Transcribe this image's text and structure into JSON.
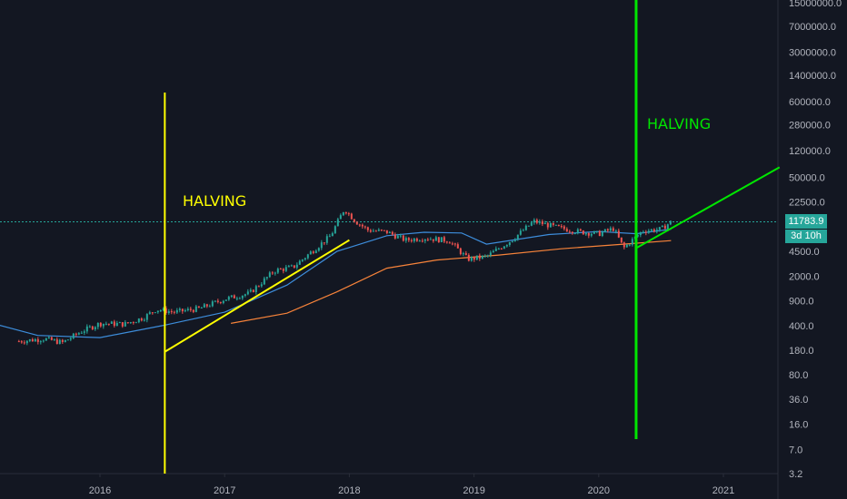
{
  "chart_data": {
    "type": "candlestick",
    "y_scale": "log",
    "y_ticks": [
      "15000000.0",
      "7000000.0",
      "3000000.0",
      "1400000.0",
      "600000.0",
      "280000.0",
      "120000.0",
      "50000.0",
      "22500.0",
      "4500.0",
      "2000.0",
      "900.0",
      "400.0",
      "180.0",
      "80.0",
      "36.0",
      "16.0",
      "7.0",
      "3.2"
    ],
    "x_ticks": [
      "2016",
      "2017",
      "2018",
      "2019",
      "2020",
      "2021"
    ],
    "last_price": "11783.9",
    "countdown": "3d 10h",
    "annotations": [
      {
        "text": "HALVING",
        "color": "#ffff00"
      },
      {
        "text": "HALVING",
        "color": "#00e600"
      }
    ],
    "price_series": [
      {
        "t": 2015.35,
        "v": 240
      },
      {
        "t": 2015.55,
        "v": 260
      },
      {
        "t": 2015.7,
        "v": 230
      },
      {
        "t": 2015.85,
        "v": 330
      },
      {
        "t": 2016.0,
        "v": 430
      },
      {
        "t": 2016.2,
        "v": 420
      },
      {
        "t": 2016.35,
        "v": 520
      },
      {
        "t": 2016.45,
        "v": 680
      },
      {
        "t": 2016.6,
        "v": 620
      },
      {
        "t": 2016.8,
        "v": 700
      },
      {
        "t": 2017.0,
        "v": 950
      },
      {
        "t": 2017.2,
        "v": 1150
      },
      {
        "t": 2017.4,
        "v": 2400
      },
      {
        "t": 2017.55,
        "v": 2700
      },
      {
        "t": 2017.7,
        "v": 4500
      },
      {
        "t": 2017.85,
        "v": 7500
      },
      {
        "t": 2017.96,
        "v": 18000
      },
      {
        "t": 2018.05,
        "v": 12000
      },
      {
        "t": 2018.15,
        "v": 9000
      },
      {
        "t": 2018.3,
        "v": 8500
      },
      {
        "t": 2018.45,
        "v": 6500
      },
      {
        "t": 2018.6,
        "v": 7000
      },
      {
        "t": 2018.8,
        "v": 6400
      },
      {
        "t": 2018.95,
        "v": 3500
      },
      {
        "t": 2019.1,
        "v": 3800
      },
      {
        "t": 2019.3,
        "v": 6500
      },
      {
        "t": 2019.48,
        "v": 12000
      },
      {
        "t": 2019.65,
        "v": 10000
      },
      {
        "t": 2019.85,
        "v": 8500
      },
      {
        "t": 2020.0,
        "v": 8000
      },
      {
        "t": 2020.12,
        "v": 9500
      },
      {
        "t": 2020.2,
        "v": 5000
      },
      {
        "t": 2020.35,
        "v": 8800
      },
      {
        "t": 2020.5,
        "v": 9300
      },
      {
        "t": 2020.58,
        "v": 11800
      }
    ],
    "ma_short": [
      {
        "t": 2015.0,
        "v": 500
      },
      {
        "t": 2015.5,
        "v": 290
      },
      {
        "t": 2016.0,
        "v": 270
      },
      {
        "t": 2016.5,
        "v": 400
      },
      {
        "t": 2017.0,
        "v": 620
      },
      {
        "t": 2017.5,
        "v": 1500
      },
      {
        "t": 2017.9,
        "v": 4500
      },
      {
        "t": 2018.3,
        "v": 7500
      },
      {
        "t": 2018.6,
        "v": 8400
      },
      {
        "t": 2018.9,
        "v": 8200
      },
      {
        "t": 2019.1,
        "v": 5700
      },
      {
        "t": 2019.6,
        "v": 7800
      },
      {
        "t": 2020.0,
        "v": 8600
      },
      {
        "t": 2020.3,
        "v": 8000
      },
      {
        "t": 2020.58,
        "v": 9300
      }
    ],
    "ma_long": [
      {
        "t": 2017.05,
        "v": 430
      },
      {
        "t": 2017.5,
        "v": 600
      },
      {
        "t": 2017.9,
        "v": 1200
      },
      {
        "t": 2018.3,
        "v": 2600
      },
      {
        "t": 2018.7,
        "v": 3400
      },
      {
        "t": 2019.2,
        "v": 4000
      },
      {
        "t": 2019.7,
        "v": 4900
      },
      {
        "t": 2020.2,
        "v": 5700
      },
      {
        "t": 2020.58,
        "v": 6400
      }
    ],
    "trendlines": [
      {
        "color": "#ffff00",
        "from": {
          "t": 2016.52,
          "v": 170
        },
        "to": {
          "t": 2018.0,
          "v": 6500
        }
      },
      {
        "color": "#00e600",
        "from": {
          "t": 2020.3,
          "v": 5000
        },
        "to": {
          "t": 2021.45,
          "v": 70000
        }
      }
    ],
    "vertical_lines": [
      {
        "color": "#ffff00",
        "t": 2016.52
      },
      {
        "color": "#00e600",
        "t": 2020.3
      }
    ]
  }
}
